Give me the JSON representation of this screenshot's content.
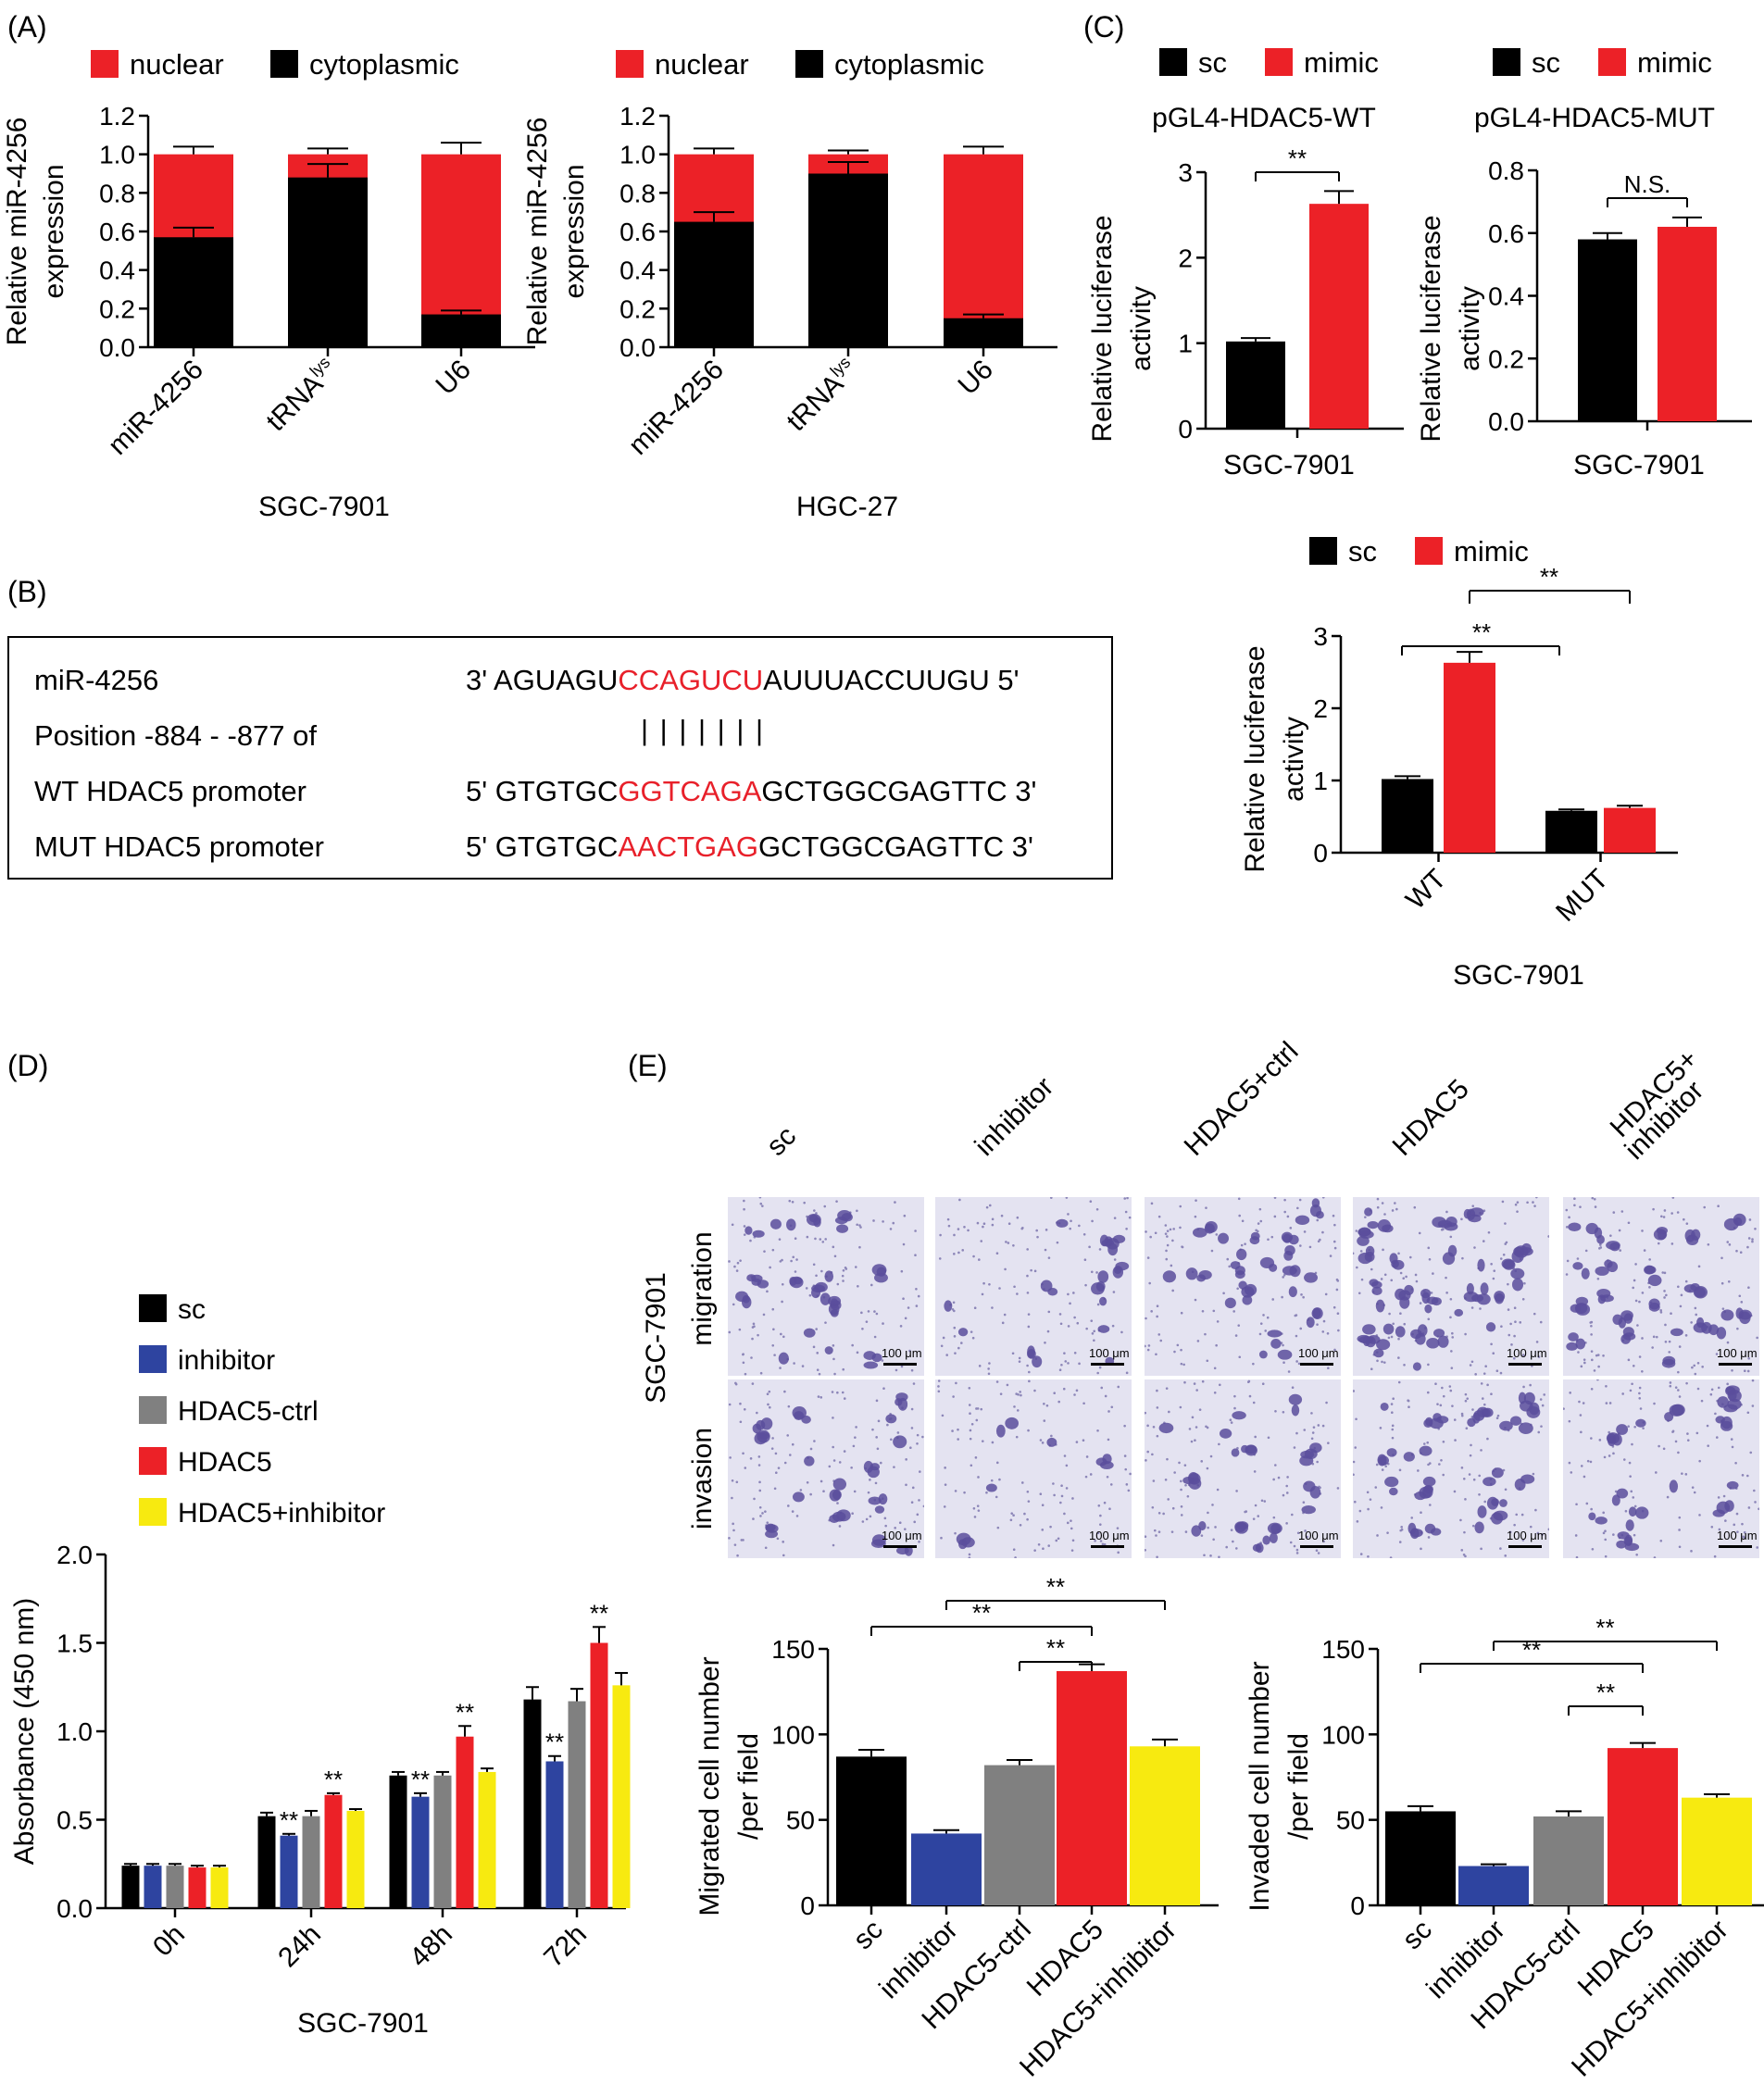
{
  "colors": {
    "red": "#ec2127",
    "black": "#000000",
    "blue": "#2e44a0",
    "gray": "#808080",
    "yellow": "#f7ea10",
    "seqred": "#e8202a",
    "cell": "#5a4e9c",
    "membrane": "#dcdcef"
  },
  "panels": {
    "A": "(A)",
    "B": "(B)",
    "C": "(C)",
    "D": "(D)",
    "E": "(E)"
  },
  "panelA": {
    "legend": [
      "nuclear",
      "cytoplasmic"
    ],
    "ylabel": [
      "Relative miR-4256",
      "expression"
    ],
    "yticks": [
      "0.0",
      "0.2",
      "0.4",
      "0.6",
      "0.8",
      "1.0",
      "1.2"
    ],
    "categories": [
      "miR-4256",
      "tRNA",
      "U6"
    ],
    "tRNA_sup": "lys",
    "left": {
      "title": "SGC-7901",
      "cytoplasmic": [
        0.57,
        0.88,
        0.17
      ],
      "cyto_err": [
        0.05,
        0.07,
        0.02
      ],
      "nuclear_err": [
        0.04,
        0.03,
        0.06
      ]
    },
    "right": {
      "title": "HGC-27",
      "cytoplasmic": [
        0.65,
        0.9,
        0.15
      ],
      "cyto_err": [
        0.05,
        0.06,
        0.02
      ],
      "nuclear_err": [
        0.03,
        0.02,
        0.04
      ]
    }
  },
  "panelB": {
    "labels": [
      "miR-4256",
      "Position  -884 - -877 of",
      "WT HDAC5 promoter",
      "MUT HDAC5 promoter"
    ],
    "seq1": {
      "pre": "3' AGUAGU",
      "red": "CCAGUCU",
      "post": "AUUUACCUUGU  5'"
    },
    "pairs": "| | | | | | |",
    "seq2": {
      "pre": "5' GTGTGC",
      "red": "GGTCAGA",
      "post": "GCTGGCGAGTTC  3'"
    },
    "seq3": {
      "pre": "5' GTGTGC",
      "red": "AACTGAG",
      "post": "GCTGGCGAGTTC  3'"
    }
  },
  "panelC": {
    "legend": [
      "sc",
      "mimic"
    ],
    "ylabel": [
      "Relative luciferase",
      "activity"
    ],
    "wt": {
      "title": "pGL4-HDAC5-WT",
      "xlabel": "SGC-7901",
      "yticks": [
        "0",
        "1",
        "2",
        "3"
      ],
      "values": [
        1.02,
        2.63
      ],
      "err": [
        0.04,
        0.15
      ],
      "sig": "**"
    },
    "mut": {
      "title": "pGL4-HDAC5-MUT",
      "xlabel": "SGC-7901",
      "yticks": [
        "0.0",
        "0.2",
        "0.4",
        "0.6",
        "0.8"
      ],
      "values": [
        0.58,
        0.62
      ],
      "err": [
        0.02,
        0.03
      ],
      "sig": "N.S."
    },
    "combined": {
      "xlabel": "SGC-7901",
      "yticks": [
        "0",
        "1",
        "2",
        "3"
      ],
      "categories": [
        "WT",
        "MUT"
      ],
      "sc": [
        1.02,
        0.58
      ],
      "mimic": [
        2.63,
        0.62
      ],
      "sc_err": [
        0.04,
        0.02
      ],
      "mimic_err": [
        0.15,
        0.03
      ],
      "sig": "**"
    }
  },
  "panelD": {
    "legend": [
      "sc",
      "inhibitor",
      "HDAC5-ctrl",
      "HDAC5",
      "HDAC5+inhibitor"
    ],
    "ylabel": "Absorbance (450 nm)",
    "yticks": [
      "0.0",
      "0.5",
      "1.0",
      "1.5",
      "2.0"
    ],
    "categories": [
      "0h",
      "24h",
      "48h",
      "72h"
    ],
    "xlabel": "SGC-7901",
    "series": [
      {
        "name": "sc",
        "values": [
          0.24,
          0.52,
          0.75,
          1.18
        ],
        "err": [
          0.01,
          0.02,
          0.02,
          0.07
        ]
      },
      {
        "name": "inhibitor",
        "values": [
          0.24,
          0.41,
          0.63,
          0.83
        ],
        "err": [
          0.01,
          0.01,
          0.02,
          0.03
        ]
      },
      {
        "name": "HDAC5-ctrl",
        "values": [
          0.24,
          0.52,
          0.75,
          1.17
        ],
        "err": [
          0.01,
          0.03,
          0.02,
          0.07
        ]
      },
      {
        "name": "HDAC5",
        "values": [
          0.23,
          0.64,
          0.97,
          1.5
        ],
        "err": [
          0.01,
          0.01,
          0.06,
          0.09
        ]
      },
      {
        "name": "HDAC5+inhibitor",
        "values": [
          0.23,
          0.55,
          0.77,
          1.26
        ],
        "err": [
          0.01,
          0.01,
          0.02,
          0.07
        ]
      }
    ],
    "sig": "**"
  },
  "panelE": {
    "groups": [
      "sc",
      "inhibitor",
      "HDAC5+ctrl",
      "HDAC5",
      "HDAC5+ inhibitor"
    ],
    "cellline": "SGC-7901",
    "rows": [
      "migration",
      "invasion"
    ],
    "scale": "100 μm",
    "categories": [
      "sc",
      "inhibitor",
      "HDAC5-ctrl",
      "HDAC5",
      "HDAC5+inhibitor"
    ],
    "yticks": [
      "0",
      "50",
      "100",
      "150"
    ],
    "migrated": {
      "ylabel": [
        "Migrated cell number",
        "/per field"
      ],
      "values": [
        87,
        42,
        82,
        137,
        93
      ],
      "err": [
        4,
        2,
        3,
        4,
        4
      ],
      "sig": "**"
    },
    "invaded": {
      "ylabel": [
        "Invaded cell number",
        "/per field"
      ],
      "values": [
        55,
        23,
        52,
        92,
        63
      ],
      "err": [
        3,
        1,
        3,
        3,
        2
      ],
      "sig": "**"
    }
  }
}
